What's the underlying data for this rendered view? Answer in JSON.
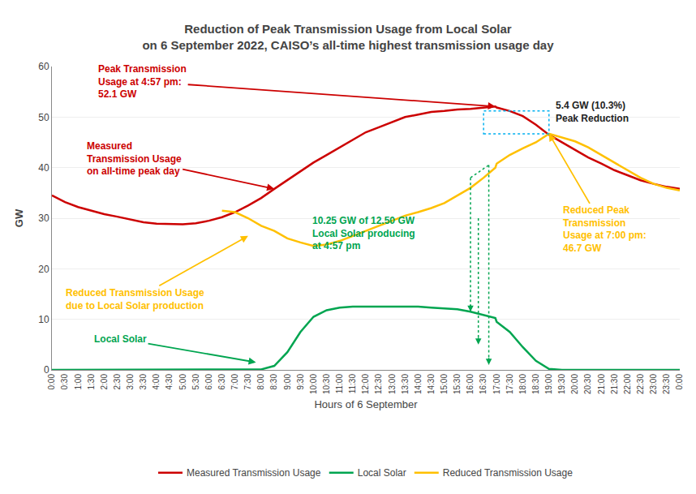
{
  "chart_data": {
    "type": "line",
    "title": "Reduction of Peak Transmission Usage from Local Solar\non 6 September 2022, CAISO’s all-time highest transmission usage day",
    "xlabel": "Hours of 6 September",
    "ylabel": "GW",
    "x": [
      0.0,
      0.5,
      1.0,
      1.5,
      2.0,
      2.5,
      3.0,
      3.5,
      4.0,
      4.5,
      5.0,
      5.5,
      6.0,
      6.5,
      7.0,
      7.5,
      8.0,
      8.5,
      9.0,
      9.5,
      10.0,
      10.5,
      11.0,
      11.5,
      12.0,
      12.5,
      13.0,
      13.5,
      14.0,
      14.5,
      15.0,
      15.5,
      16.0,
      16.5,
      16.95,
      17.0,
      17.5,
      18.0,
      18.5,
      19.0,
      19.5,
      20.0,
      20.5,
      21.0,
      21.5,
      22.0,
      22.5,
      23.0,
      23.5,
      24.0
    ],
    "series": [
      {
        "name": "Measured Transmission Usage",
        "color": "#cc0000",
        "values": [
          34.5,
          33.2,
          32.2,
          31.5,
          30.8,
          30.3,
          29.8,
          29.2,
          28.9,
          28.8,
          28.8,
          29.0,
          29.5,
          30.2,
          31.2,
          32.5,
          34.0,
          35.8,
          37.5,
          39.2,
          41.0,
          42.5,
          44.0,
          45.5,
          47.0,
          48.0,
          49.0,
          50.0,
          50.5,
          51.0,
          51.2,
          51.5,
          51.6,
          51.8,
          52.1,
          51.9,
          51.2,
          50.2,
          48.5,
          46.5,
          45.0,
          43.5,
          42.0,
          40.8,
          39.5,
          38.5,
          37.5,
          36.8,
          36.2,
          35.8
        ]
      },
      {
        "name": "Local Solar",
        "color": "#00a550",
        "values": [
          0.0,
          0.0,
          0.0,
          0.0,
          0.0,
          0.0,
          0.0,
          0.0,
          0.0,
          0.0,
          0.0,
          0.0,
          0.0,
          0.0,
          0.0,
          0.0,
          0.1,
          0.8,
          3.5,
          7.5,
          10.5,
          11.8,
          12.3,
          12.5,
          12.5,
          12.5,
          12.5,
          12.5,
          12.5,
          12.3,
          12.2,
          12.0,
          11.5,
          10.8,
          10.25,
          9.5,
          7.5,
          4.5,
          1.8,
          0.2,
          0.0,
          0.0,
          0.0,
          0.0,
          0.0,
          0.0,
          0.0,
          0.0,
          0.0,
          0.0
        ]
      },
      {
        "name": "Reduced Transmission Usage",
        "color": "#ffc000",
        "values": [
          null,
          null,
          null,
          null,
          null,
          null,
          null,
          null,
          null,
          null,
          null,
          null,
          null,
          31.5,
          31.2,
          30.0,
          28.5,
          27.5,
          26.0,
          25.2,
          24.5,
          24.8,
          25.5,
          26.5,
          27.5,
          28.5,
          29.5,
          30.5,
          31.2,
          32.0,
          33.0,
          34.5,
          36.0,
          38.0,
          40.0,
          40.8,
          42.5,
          43.8,
          45.0,
          46.7,
          46.0,
          45.2,
          44.0,
          42.5,
          41.0,
          39.5,
          38.0,
          36.8,
          36.0,
          35.5
        ]
      }
    ],
    "xlim": [
      0,
      24
    ],
    "xticks": [
      {
        "value": 0.0,
        "label": "0:00"
      },
      {
        "value": 0.5,
        "label": "0:30"
      },
      {
        "value": 1.0,
        "label": "1:00"
      },
      {
        "value": 1.5,
        "label": "1:30"
      },
      {
        "value": 2.0,
        "label": "2:00"
      },
      {
        "value": 2.5,
        "label": "2:30"
      },
      {
        "value": 3.0,
        "label": "3:00"
      },
      {
        "value": 3.5,
        "label": "3:30"
      },
      {
        "value": 4.0,
        "label": "4:00"
      },
      {
        "value": 4.5,
        "label": "4:30"
      },
      {
        "value": 5.0,
        "label": "5:00"
      },
      {
        "value": 5.5,
        "label": "5:30"
      },
      {
        "value": 6.0,
        "label": "6:00"
      },
      {
        "value": 6.5,
        "label": "6:30"
      },
      {
        "value": 7.0,
        "label": "7:00"
      },
      {
        "value": 7.5,
        "label": "7:30"
      },
      {
        "value": 8.0,
        "label": "8:00"
      },
      {
        "value": 8.5,
        "label": "8:30"
      },
      {
        "value": 9.0,
        "label": "9:00"
      },
      {
        "value": 9.5,
        "label": "9:30"
      },
      {
        "value": 10.0,
        "label": "10:00"
      },
      {
        "value": 10.5,
        "label": "10:30"
      },
      {
        "value": 11.0,
        "label": "11:00"
      },
      {
        "value": 11.5,
        "label": "11:30"
      },
      {
        "value": 12.0,
        "label": "12:00"
      },
      {
        "value": 12.5,
        "label": "12:30"
      },
      {
        "value": 13.0,
        "label": "13:00"
      },
      {
        "value": 13.5,
        "label": "13:30"
      },
      {
        "value": 14.0,
        "label": "14:00"
      },
      {
        "value": 14.5,
        "label": "14:30"
      },
      {
        "value": 15.0,
        "label": "15:00"
      },
      {
        "value": 15.5,
        "label": "15:30"
      },
      {
        "value": 16.0,
        "label": "16:00"
      },
      {
        "value": 16.5,
        "label": "16:30"
      },
      {
        "value": 17.0,
        "label": "17:00"
      },
      {
        "value": 17.5,
        "label": "17:30"
      },
      {
        "value": 18.0,
        "label": "18:00"
      },
      {
        "value": 18.5,
        "label": "18:30"
      },
      {
        "value": 19.0,
        "label": "19:00"
      },
      {
        "value": 19.5,
        "label": "19:30"
      },
      {
        "value": 20.0,
        "label": "20:00"
      },
      {
        "value": 20.5,
        "label": "20:30"
      },
      {
        "value": 21.0,
        "label": "21:00"
      },
      {
        "value": 21.5,
        "label": "21:30"
      },
      {
        "value": 22.0,
        "label": "22:00"
      },
      {
        "value": 22.5,
        "label": "22:30"
      },
      {
        "value": 23.0,
        "label": "23:00"
      },
      {
        "value": 23.5,
        "label": "23:30"
      },
      {
        "value": 24.0,
        "label": "0:00"
      }
    ],
    "ylim": [
      0,
      60
    ],
    "yticks": [
      0,
      10,
      20,
      30,
      40,
      50,
      60
    ],
    "grid": "y",
    "legend": "bottom",
    "annotations": [
      {
        "text": "Peak Transmission\nUsage at 4:57 pm:\n52.1 GW",
        "x": 16.95,
        "y": 52.1,
        "color": "#cc0000"
      },
      {
        "text": "Measured\nTransmission Usage\non all-time peak day",
        "x": 8.5,
        "y": 35.8,
        "color": "#cc0000"
      },
      {
        "text": "Reduced Transmission Usage\ndue to Local Solar production",
        "x": 7.5,
        "y": 26.5,
        "color": "#ffc000"
      },
      {
        "text": "Local Solar",
        "x": 7.8,
        "y": 1.5,
        "color": "#00a550"
      },
      {
        "text": "10.25 GW of 12.50 GW\nLocal Solar producing\nat 4:57 pm",
        "color": "#00a550"
      },
      {
        "text": "Reduced Peak\nTransmission\nUsage at 7:00 pm:\n46.7 GW",
        "x": 19.0,
        "y": 46.7,
        "color": "#ffc000"
      },
      {
        "text": "5.4 GW (10.3%)\nPeak Reduction",
        "color": "#222222"
      }
    ],
    "shapes": [
      {
        "type": "rect",
        "x": [
          16.5,
          19.0
        ],
        "y": [
          46.7,
          51.2
        ],
        "color": "#00b0f0",
        "line_style": "dotted"
      },
      {
        "type": "line",
        "x": [
          16.0,
          16.0
        ],
        "y": [
          38.0,
          11.5
        ],
        "color": "#00a550",
        "line_style": "dotted",
        "arrow": true
      },
      {
        "type": "line",
        "x": [
          16.3,
          16.3
        ],
        "y": [
          30.0,
          5.0
        ],
        "color": "#00a550",
        "line_style": "dotted",
        "arrow": true
      },
      {
        "type": "line",
        "x": [
          16.7,
          16.7
        ],
        "y": [
          40.5,
          1.0
        ],
        "color": "#00a550",
        "line_style": "dotted",
        "arrow": true
      },
      {
        "type": "line",
        "x": [
          16.0,
          16.7
        ],
        "y": [
          38.0,
          40.5
        ],
        "color": "#00a550",
        "line_style": "dotted"
      }
    ]
  }
}
